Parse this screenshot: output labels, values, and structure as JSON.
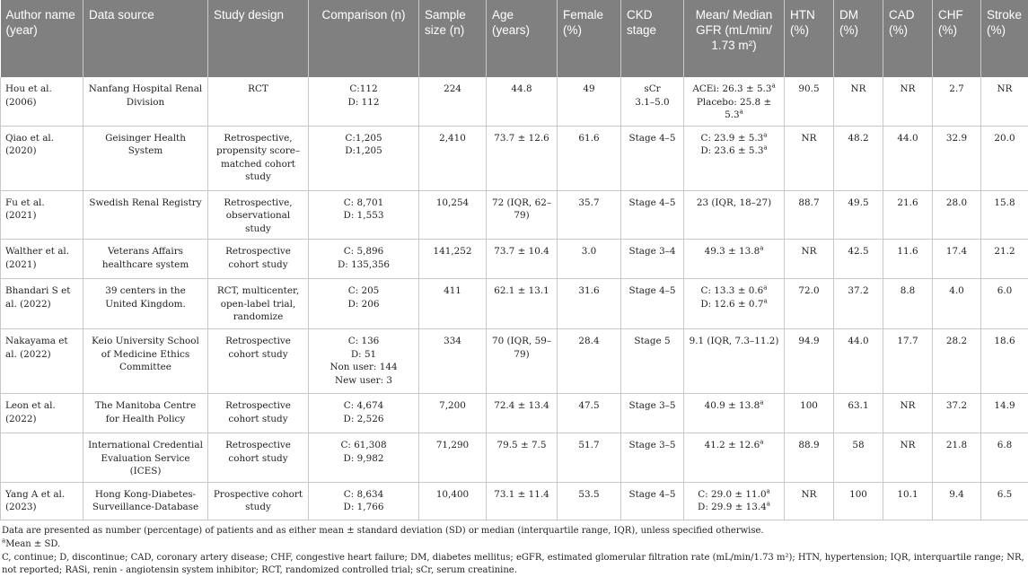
{
  "headers": [
    "Author name (year)",
    "Data source",
    "Study design",
    "Comparison (n)",
    "Sample size (n)",
    "Age (years)",
    "Female (%)",
    "CKD stage",
    "Mean/ Median GFR (mL/min/ 1.73 m²)",
    "HTN (%)",
    "DM (%)",
    "CAD (%)",
    "CHF (%)",
    "Stroke (%)"
  ],
  "rows": [
    {
      "author": "Hou et al. (2006)",
      "source": "Nanfang Hospital Renal Division",
      "design": "RCT",
      "comparison": [
        "C:112",
        "D: 112"
      ],
      "sample": "224",
      "age": "44.8",
      "female": "49",
      "ckd": [
        "sCr",
        "3.1–5.0"
      ],
      "gfr": [
        "ACEi: 26.3 ± 5.3",
        "Placebo: 25.8 ± 5.3"
      ],
      "gfr_sup": [
        "a",
        "a"
      ],
      "htn": "90.5",
      "dm": "NR",
      "cad": "NR",
      "chf": "2.7",
      "stroke": "NR"
    },
    {
      "author": "Qiao et al. (2020)",
      "source": "Geisinger Health System",
      "design": "Retrospective, propensity score–matched cohort study",
      "comparison": [
        "C:1,205",
        "D:1,205"
      ],
      "sample": "2,410",
      "age": "73.7 ± 12.6",
      "female": "61.6",
      "ckd": [
        "Stage 4–5"
      ],
      "gfr": [
        "C: 23.9 ± 5.3",
        "D: 23.6 ± 5.3"
      ],
      "gfr_sup": [
        "a",
        "a"
      ],
      "htn": "NR",
      "dm": "48.2",
      "cad": "44.0",
      "chf": "32.9",
      "stroke": "20.0"
    },
    {
      "author": "Fu et al. (2021)",
      "source": "Swedish Renal Registry",
      "design": "Retrospective, observational study",
      "comparison": [
        "C: 8,701",
        "D: 1,553"
      ],
      "sample": "10,254",
      "age": "72 (IQR, 62–79)",
      "female": "35.7",
      "ckd": [
        "Stage 4–5"
      ],
      "gfr": [
        "23 (IQR, 18–27)"
      ],
      "gfr_sup": [
        ""
      ],
      "htn": "88.7",
      "dm": "49.5",
      "cad": "21.6",
      "chf": "28.0",
      "stroke": "15.8"
    },
    {
      "author": "Walther et al. (2021)",
      "source": "Veterans Affairs healthcare system",
      "design": "Retrospective cohort study",
      "comparison": [
        "C: 5,896",
        "D: 135,356"
      ],
      "sample": "141,252",
      "age": "73.7 ± 10.4",
      "female": "3.0",
      "ckd": [
        "Stage 3–4"
      ],
      "gfr": [
        "49.3 ± 13.8"
      ],
      "gfr_sup": [
        "a"
      ],
      "htn": "NR",
      "dm": "42.5",
      "cad": "11.6",
      "chf": "17.4",
      "stroke": "21.2"
    },
    {
      "author": "Bhandari S et al. (2022)",
      "source": "39 centers in the United Kingdom.",
      "design": "RCT, multicenter, open-label trial, randomize",
      "comparison": [
        "C: 205",
        "D: 206"
      ],
      "sample": "411",
      "age": "62.1 ± 13.1",
      "female": "31.6",
      "ckd": [
        "Stage 4–5"
      ],
      "gfr": [
        "C: 13.3 ± 0.6",
        "D: 12.6 ± 0.7"
      ],
      "gfr_sup": [
        "a",
        "a"
      ],
      "htn": "72.0",
      "dm": "37.2",
      "cad": "8.8",
      "chf": "4.0",
      "stroke": "6.0"
    },
    {
      "author": "Nakayama et al. (2022)",
      "source": "Keio University School of Medicine Ethics Committee",
      "design": "Retrospective cohort study",
      "comparison": [
        "C: 136",
        "D: 51",
        "Non user: 144",
        "New user: 3"
      ],
      "sample": "334",
      "age": "70 (IQR, 59–79)",
      "female": "28.4",
      "ckd": [
        "Stage 5"
      ],
      "gfr": [
        "9.1 (IQR, 7.3–11.2)"
      ],
      "gfr_sup": [
        ""
      ],
      "htn": "94.9",
      "dm": "44.0",
      "cad": "17.7",
      "chf": "28.2",
      "stroke": "18.6"
    },
    {
      "author": "Leon et al. (2022)",
      "source": "The Manitoba Centre for Health Policy",
      "design": "Retrospective cohort study",
      "comparison": [
        "C: 4,674",
        "D: 2,526"
      ],
      "sample": "7,200",
      "age": "72.4 ± 13.4",
      "female": "47.5",
      "ckd": [
        "Stage 3–5"
      ],
      "gfr": [
        "40.9 ± 13.8"
      ],
      "gfr_sup": [
        "a"
      ],
      "htn": "100",
      "dm": "63.1",
      "cad": "NR",
      "chf": "37.2",
      "stroke": "14.9"
    },
    {
      "author": "",
      "source": "International Credential Evaluation Service (ICES)",
      "design": "Retrospective cohort study",
      "comparison": [
        "C: 61,308",
        "D: 9,982"
      ],
      "sample": "71,290",
      "age": "79.5 ± 7.5",
      "female": "51.7",
      "ckd": [
        "Stage 3–5"
      ],
      "gfr": [
        "41.2 ± 12.6"
      ],
      "gfr_sup": [
        "a"
      ],
      "htn": "88.9",
      "dm": "58",
      "cad": "NR",
      "chf": "21.8",
      "stroke": "6.8"
    },
    {
      "author": "Yang A et al. (2023)",
      "source": "Hong Kong-Diabetes-Surveillance-Database",
      "design": "Prospective cohort study",
      "comparison": [
        "C: 8,634",
        "D: 1,766"
      ],
      "sample": "10,400",
      "age": "73.1 ± 11.4",
      "female": "53.5",
      "ckd": [
        "Stage 4–5"
      ],
      "gfr": [
        "C: 29.0 ± 11.0",
        "D: 29.9 ± 13.4"
      ],
      "gfr_sup": [
        "a",
        "a"
      ],
      "htn": "NR",
      "dm": "100",
      "cad": "10.1",
      "chf": "9.4",
      "stroke": "6.5"
    }
  ],
  "footnotes": {
    "line1": "Data are presented as number (percentage) of patients and as either mean ± standard deviation (SD) or median (interquartile range, IQR), unless specified otherwise.",
    "sup_mark": "a",
    "line2": "Mean ± SD.",
    "line3": "C, continue; D, discontinue; CAD, coronary artery disease; CHF, congestive heart failure; DM, diabetes mellitus; eGFR, estimated glomerular filtration rate (mL/min/1.73 m²); HTN, hypertension; IQR, interquartile range; NR, not reported; RASi, renin - angiotensin system inhibitor; RCT, randomized controlled trial; sCr, serum creatinine."
  }
}
